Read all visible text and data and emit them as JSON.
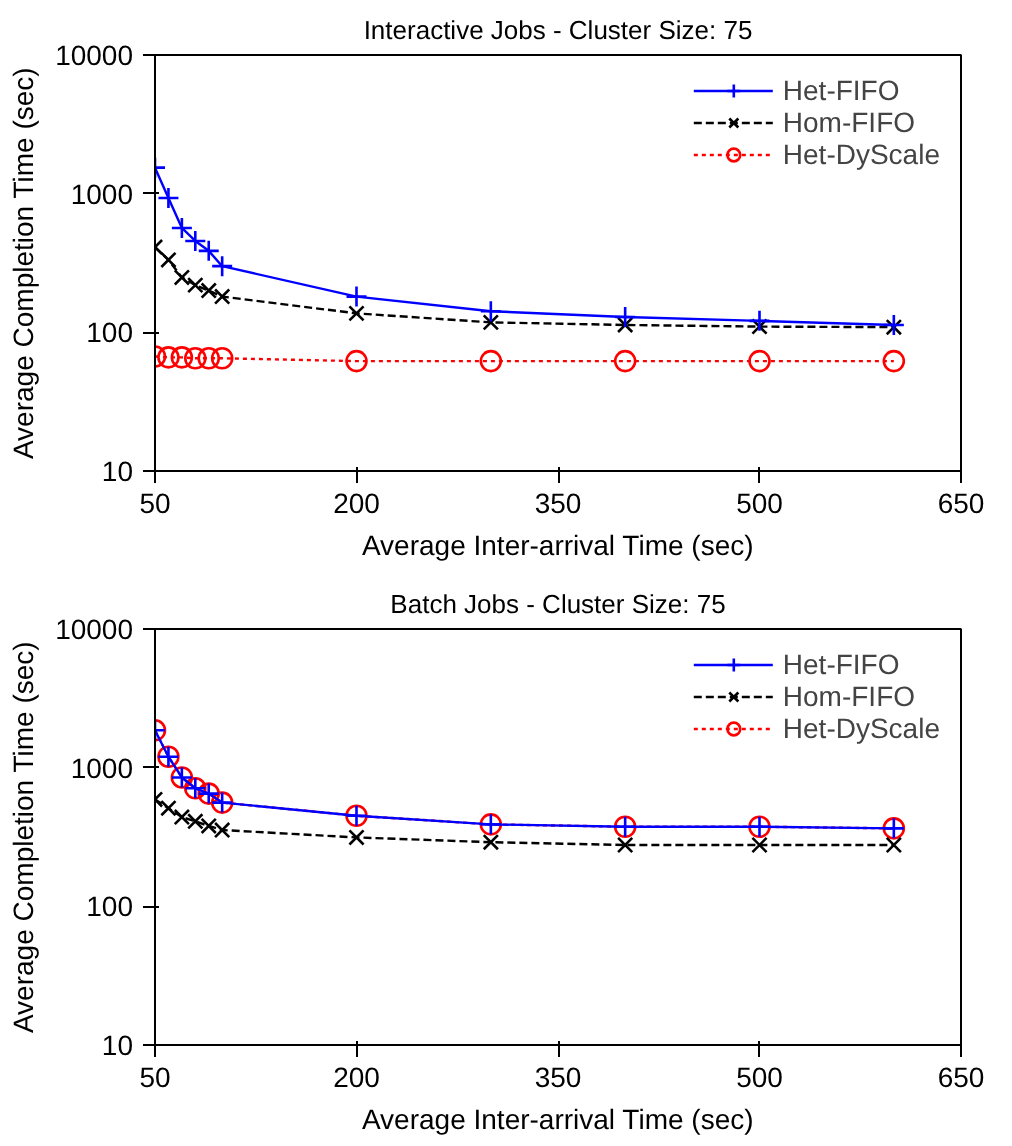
{
  "chart_data": [
    {
      "type": "line",
      "title": "Interactive Jobs - Cluster Size: 75",
      "xlabel": "Average Inter-arrival Time (sec)",
      "ylabel": "Average Completion Time (sec)",
      "x": [
        50,
        60,
        70,
        80,
        90,
        100,
        200,
        300,
        400,
        500,
        600
      ],
      "series": [
        {
          "name": "Het-FIFO",
          "color": "#0000ff",
          "marker": "plus",
          "line_style": "solid",
          "values": [
            1540,
            930,
            566,
            456,
            387,
            300,
            181,
            142,
            129,
            121,
            113
          ]
        },
        {
          "name": "Hom-FIFO",
          "color": "#000000",
          "marker": "cross",
          "line_style": "dashed",
          "values": [
            412,
            333,
            249,
            219,
            200,
            181,
            137,
            118,
            113,
            110,
            109
          ]
        },
        {
          "name": "Het-DyScale",
          "color": "#ff0000",
          "marker": "circle",
          "line_style": "dotted",
          "values": [
            67,
            66,
            66,
            65,
            65,
            65,
            62,
            62,
            62,
            62,
            62
          ]
        }
      ],
      "log": "y",
      "xlim": [
        50,
        650
      ],
      "ylim": [
        10,
        10000
      ],
      "xticks": [
        50,
        200,
        350,
        500,
        650
      ],
      "yticks": [
        10,
        100,
        1000,
        10000
      ],
      "grid": false,
      "legend": "top right"
    },
    {
      "type": "line",
      "title": "Batch Jobs - Cluster Size: 75",
      "xlabel": "Average Inter-arrival Time (sec)",
      "ylabel": "Average Completion Time (sec)",
      "x": [
        50,
        60,
        70,
        80,
        90,
        100,
        200,
        300,
        400,
        500,
        600
      ],
      "series": [
        {
          "name": "Het-FIFO",
          "color": "#0000ff",
          "marker": "plus",
          "line_style": "solid",
          "values": [
            1860,
            1200,
            850,
            710,
            650,
            560,
            450,
            390,
            375,
            375,
            365
          ]
        },
        {
          "name": "Hom-FIFO",
          "color": "#000000",
          "marker": "cross",
          "line_style": "dashed",
          "values": [
            590,
            510,
            440,
            410,
            380,
            355,
            314,
            290,
            277,
            277,
            277
          ]
        },
        {
          "name": "Het-DyScale",
          "color": "#ff0000",
          "marker": "circle",
          "line_style": "dotted",
          "values": [
            1860,
            1200,
            850,
            710,
            650,
            560,
            450,
            390,
            375,
            375,
            365
          ]
        }
      ],
      "log": "y",
      "xlim": [
        50,
        650
      ],
      "ylim": [
        10,
        10000
      ],
      "xticks": [
        50,
        200,
        350,
        500,
        650
      ],
      "yticks": [
        10,
        100,
        1000,
        10000
      ],
      "grid": false,
      "legend": "top right"
    }
  ]
}
